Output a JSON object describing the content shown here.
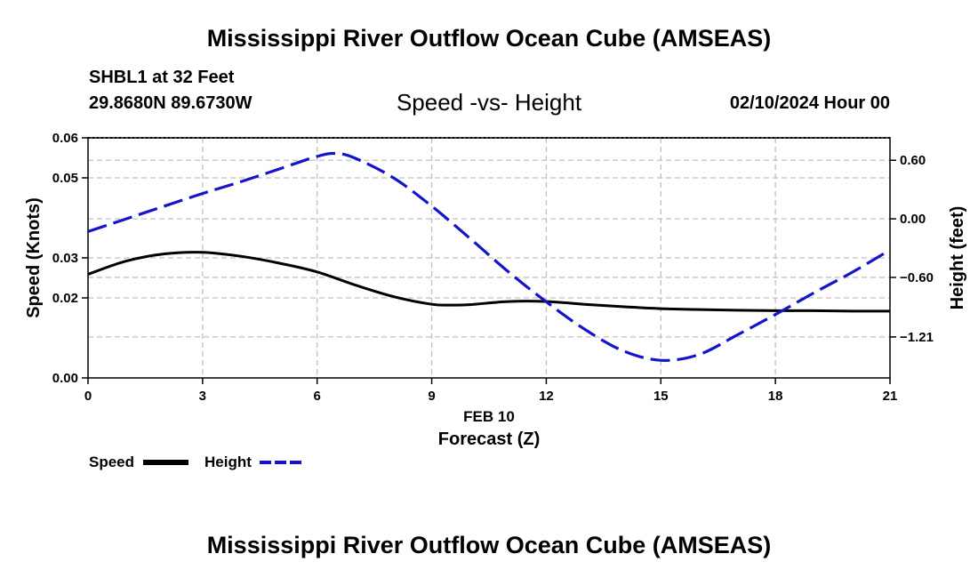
{
  "header": {
    "title": "Mississippi River Outflow Ocean Cube (AMSEAS)",
    "station": "SHBL1 at 32 Feet",
    "coords": "29.8680N  89.6730W",
    "subtitle": "Speed -vs- Height",
    "datetime": "02/10/2024 Hour 00"
  },
  "footer": {
    "title": "Mississippi River Outflow Ocean Cube (AMSEAS)"
  },
  "legend": {
    "speed_label": "Speed",
    "height_label": "Height"
  },
  "colors": {
    "speed": "#000000",
    "height": "#1515c8",
    "grid": "#c0c0c0"
  },
  "chart_data": {
    "type": "line",
    "title": "Speed -vs- Height",
    "xlabel": "Forecast (Z)",
    "xdate_label": "FEB 10",
    "ylabel_left": "Speed (Knots)",
    "ylabel_right": "Height (feet)",
    "xlim": [
      0,
      21
    ],
    "ylim_left": [
      0,
      0.06
    ],
    "ylim_right": [
      -1.63,
      0.83
    ],
    "xticks": [
      0,
      3,
      6,
      9,
      12,
      15,
      18,
      21
    ],
    "yticks_left": [
      {
        "value": 0.0,
        "label": "0.00"
      },
      {
        "value": 0.02,
        "label": "0.02"
      },
      {
        "value": 0.03,
        "label": "0.03"
      },
      {
        "value": 0.05,
        "label": "0.05"
      },
      {
        "value": 0.06,
        "label": "0.06"
      }
    ],
    "yticks_right": [
      {
        "value": 0.6,
        "label": "0.60"
      },
      {
        "value": 0.0,
        "label": "0.00"
      },
      {
        "value": -0.6,
        "label": "−0.60"
      },
      {
        "value": -1.21,
        "label": "−1.21"
      }
    ],
    "grid": true,
    "series": [
      {
        "name": "Speed",
        "axis": "left",
        "style": "solid",
        "x": [
          0,
          1,
          2,
          3,
          4,
          5,
          6,
          7,
          8,
          9,
          9.5,
          10,
          11,
          12,
          13,
          14,
          15,
          16,
          17,
          18,
          19,
          20,
          21
        ],
        "values": [
          0.0259,
          0.0292,
          0.031,
          0.0314,
          0.0304,
          0.0287,
          0.0265,
          0.0232,
          0.0203,
          0.0184,
          0.0182,
          0.0183,
          0.0191,
          0.0191,
          0.0184,
          0.0178,
          0.0173,
          0.0171,
          0.0169,
          0.0168,
          0.0168,
          0.0167,
          0.0167
        ]
      },
      {
        "name": "Height",
        "axis": "right",
        "style": "dashed",
        "x": [
          0,
          1,
          2,
          3,
          4,
          5,
          6,
          6.5,
          7,
          8,
          9,
          10,
          11,
          12,
          13,
          14,
          15,
          16,
          17,
          18,
          19,
          20,
          21
        ],
        "values": [
          -0.13,
          0.0,
          0.13,
          0.26,
          0.38,
          0.51,
          0.64,
          0.67,
          0.62,
          0.42,
          0.13,
          -0.2,
          -0.54,
          -0.85,
          -1.13,
          -1.35,
          -1.45,
          -1.39,
          -1.19,
          -0.98,
          -0.76,
          -0.55,
          -0.32
        ]
      }
    ]
  }
}
